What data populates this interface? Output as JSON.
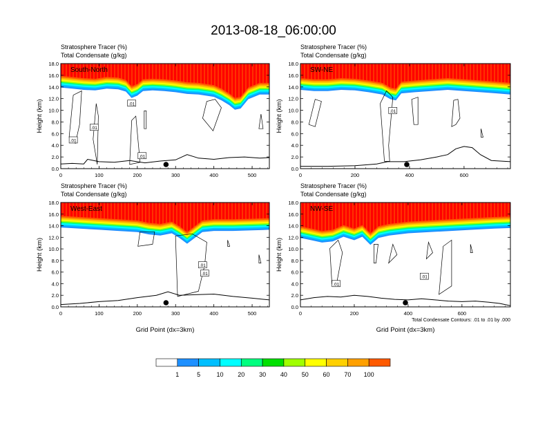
{
  "title": "2013-08-18_06:00:00",
  "colors": {
    "scale": [
      "#ffffff",
      "#1e90ff",
      "#00bfff",
      "#00ffff",
      "#00ff7f",
      "#00e000",
      "#a0ff00",
      "#ffff00",
      "#ffd000",
      "#ffa000",
      "#ff5a00",
      "#ff0000"
    ]
  },
  "colorbar": {
    "labels": [
      "1",
      "5",
      "10",
      "20",
      "30",
      "40",
      "50",
      "60",
      "70",
      "100"
    ]
  },
  "chart_data": [
    {
      "type": "contour",
      "name": "South-North",
      "label1": "Stratosphere Tracer   (%)",
      "label2": "Total Condensate   (g/kg)",
      "ylabel": "Height (km)",
      "xlabel": "",
      "xlim": [
        0,
        545
      ],
      "ylim": [
        0,
        18
      ],
      "xticks": [
        "0",
        "100",
        "200",
        "300",
        "400",
        "500"
      ],
      "yticks": [
        "0.0",
        "2.0",
        "4.0",
        "6.0",
        "8.0",
        "10.0",
        "12.0",
        "14.0",
        "16.0",
        "18.0"
      ],
      "contour_labels": [
        ".01",
        ".01",
        ".01",
        ".01"
      ],
      "marker_x": 275,
      "tropo": [
        [
          0,
          14.6
        ],
        [
          30,
          14.4
        ],
        [
          60,
          14.2
        ],
        [
          90,
          14.1
        ],
        [
          120,
          14.4
        ],
        [
          150,
          14.3
        ],
        [
          170,
          13.9
        ],
        [
          185,
          12.8
        ],
        [
          200,
          13.2
        ],
        [
          215,
          14.0
        ],
        [
          240,
          14.1
        ],
        [
          270,
          14.0
        ],
        [
          300,
          13.8
        ],
        [
          330,
          13.5
        ],
        [
          360,
          13.4
        ],
        [
          400,
          13.0
        ],
        [
          420,
          12.4
        ],
        [
          440,
          11.6
        ],
        [
          455,
          10.8
        ],
        [
          470,
          11.0
        ],
        [
          490,
          12.6
        ],
        [
          520,
          13.4
        ],
        [
          545,
          13.4
        ]
      ],
      "terrain": [
        [
          0,
          0.8
        ],
        [
          30,
          0.9
        ],
        [
          60,
          0.8
        ],
        [
          70,
          1.6
        ],
        [
          100,
          1.2
        ],
        [
          140,
          1.1
        ],
        [
          180,
          1.4
        ],
        [
          220,
          1.0
        ],
        [
          260,
          1.3
        ],
        [
          300,
          1.5
        ],
        [
          330,
          2.4
        ],
        [
          360,
          1.8
        ],
        [
          400,
          1.6
        ],
        [
          440,
          1.9
        ],
        [
          480,
          2.0
        ],
        [
          520,
          1.8
        ],
        [
          545,
          1.9
        ]
      ]
    },
    {
      "type": "contour",
      "name": "SW-NE",
      "label1": "Stratosphere Tracer   (%)",
      "label2": "Total Condensate   (g/kg)",
      "ylabel": "Height (km)",
      "xlabel": "",
      "xlim": [
        0,
        770
      ],
      "ylim": [
        0,
        18
      ],
      "xticks": [
        "0",
        "200",
        "400",
        "600"
      ],
      "yticks": [
        "0.0",
        "2.0",
        "4.0",
        "6.0",
        "8.0",
        "10.0",
        "12.0",
        "14.0",
        "16.0",
        "18.0"
      ],
      "contour_labels": [
        ".01"
      ],
      "marker_x": 390,
      "tropo": [
        [
          0,
          14.2
        ],
        [
          50,
          14.0
        ],
        [
          100,
          14.0
        ],
        [
          150,
          14.2
        ],
        [
          200,
          14.1
        ],
        [
          250,
          13.8
        ],
        [
          300,
          13.4
        ],
        [
          330,
          12.6
        ],
        [
          350,
          12.4
        ],
        [
          370,
          13.6
        ],
        [
          420,
          13.8
        ],
        [
          480,
          14.0
        ],
        [
          540,
          14.2
        ],
        [
          600,
          14.0
        ],
        [
          660,
          13.8
        ],
        [
          720,
          13.6
        ],
        [
          770,
          13.4
        ]
      ],
      "terrain": [
        [
          0,
          0.4
        ],
        [
          100,
          0.4
        ],
        [
          200,
          0.5
        ],
        [
          280,
          0.8
        ],
        [
          320,
          1.2
        ],
        [
          380,
          1.2
        ],
        [
          440,
          1.5
        ],
        [
          500,
          2.0
        ],
        [
          540,
          2.4
        ],
        [
          570,
          3.4
        ],
        [
          600,
          3.8
        ],
        [
          630,
          3.6
        ],
        [
          660,
          2.4
        ],
        [
          700,
          1.4
        ],
        [
          770,
          1.2
        ]
      ]
    },
    {
      "type": "contour",
      "name": "West-East",
      "label1": "Stratosphere Tracer   (%)",
      "label2": "Total Condensate   (g/kg)",
      "ylabel": "Height (km)",
      "xlabel": "Grid Point (dx=3km)",
      "xlim": [
        0,
        545
      ],
      "ylim": [
        0,
        18
      ],
      "xticks": [
        "0",
        "100",
        "200",
        "300",
        "400",
        "500"
      ],
      "yticks": [
        "0.0",
        "2.0",
        "4.0",
        "6.0",
        "8.0",
        "10.0",
        "12.0",
        "14.0",
        "16.0",
        "18.0"
      ],
      "contour_labels": [
        ".01",
        ".01"
      ],
      "marker_x": 275,
      "tropo": [
        [
          0,
          14.4
        ],
        [
          50,
          14.2
        ],
        [
          100,
          14.0
        ],
        [
          150,
          13.8
        ],
        [
          200,
          13.6
        ],
        [
          230,
          13.2
        ],
        [
          260,
          13.0
        ],
        [
          290,
          13.4
        ],
        [
          310,
          12.6
        ],
        [
          330,
          11.6
        ],
        [
          350,
          12.6
        ],
        [
          370,
          13.6
        ],
        [
          400,
          13.8
        ],
        [
          450,
          13.8
        ],
        [
          500,
          13.9
        ],
        [
          545,
          14.0
        ]
      ],
      "terrain": [
        [
          0,
          0.4
        ],
        [
          50,
          0.6
        ],
        [
          100,
          0.9
        ],
        [
          150,
          1.1
        ],
        [
          200,
          1.6
        ],
        [
          250,
          2.0
        ],
        [
          280,
          2.6
        ],
        [
          310,
          2.0
        ],
        [
          350,
          2.1
        ],
        [
          400,
          2.2
        ],
        [
          450,
          1.8
        ],
        [
          500,
          1.5
        ],
        [
          545,
          1.2
        ]
      ]
    },
    {
      "type": "contour",
      "name": "NW-SE",
      "label1": "Stratosphere Tracer   (%)",
      "label2": "Total Condensate   (g/kg)",
      "ylabel": "Height (km)",
      "xlabel": "Grid Point (dx=3km)",
      "xlim": [
        0,
        780
      ],
      "ylim": [
        0,
        18
      ],
      "xticks": [
        "0",
        "200",
        "400",
        "600"
      ],
      "yticks": [
        "0.0",
        "2.0",
        "4.0",
        "6.0",
        "8.0",
        "10.0",
        "12.0",
        "14.0",
        "16.0",
        "18.0"
      ],
      "contour_labels": [
        ".01",
        ".01"
      ],
      "marker_x": 390,
      "footnote": "Total Condensate Contours: .01 to .01 by .000",
      "tropo": [
        [
          0,
          12.6
        ],
        [
          40,
          12.2
        ],
        [
          80,
          11.8
        ],
        [
          120,
          12.0
        ],
        [
          160,
          12.8
        ],
        [
          200,
          12.2
        ],
        [
          230,
          12.8
        ],
        [
          260,
          11.4
        ],
        [
          290,
          12.6
        ],
        [
          330,
          13.0
        ],
        [
          400,
          13.4
        ],
        [
          480,
          13.6
        ],
        [
          560,
          13.8
        ],
        [
          640,
          14.0
        ],
        [
          720,
          14.2
        ],
        [
          780,
          14.3
        ]
      ],
      "terrain": [
        [
          0,
          1.2
        ],
        [
          50,
          1.6
        ],
        [
          100,
          1.8
        ],
        [
          150,
          1.7
        ],
        [
          200,
          2.0
        ],
        [
          250,
          1.8
        ],
        [
          300,
          1.5
        ],
        [
          350,
          1.3
        ],
        [
          400,
          1.2
        ],
        [
          450,
          1.4
        ],
        [
          500,
          1.2
        ],
        [
          550,
          1.0
        ],
        [
          600,
          0.9
        ],
        [
          650,
          1.0
        ],
        [
          700,
          0.8
        ],
        [
          740,
          0.6
        ],
        [
          780,
          0.2
        ]
      ]
    }
  ]
}
